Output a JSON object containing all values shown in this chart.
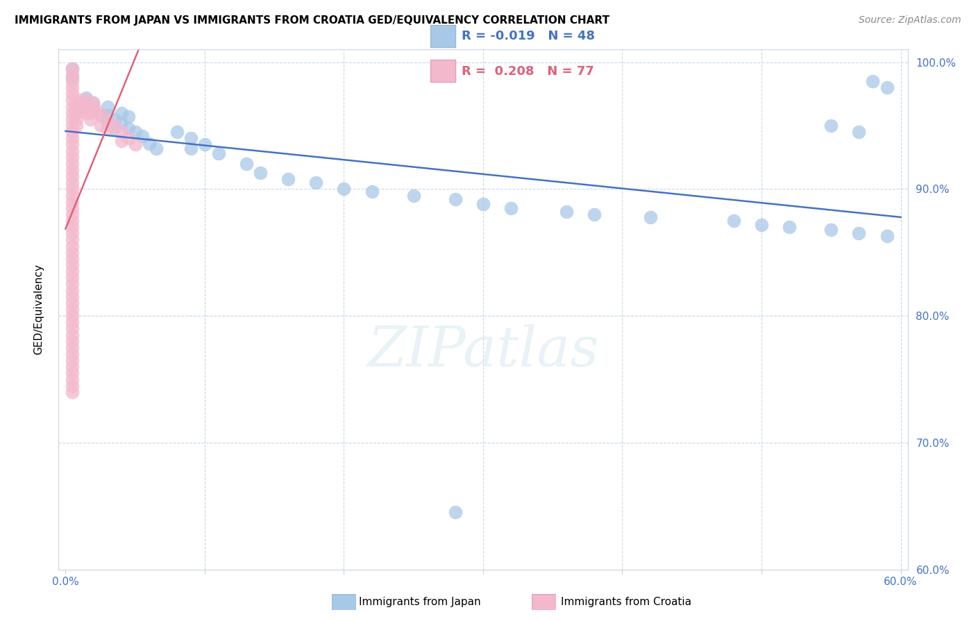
{
  "title": "IMMIGRANTS FROM JAPAN VS IMMIGRANTS FROM CROATIA GED/EQUIVALENCY CORRELATION CHART",
  "source": "Source: ZipAtlas.com",
  "ylabel": "GED/Equivalency",
  "xmin": 0.0,
  "xmax": 0.6,
  "ymin": 0.6,
  "ymax": 1.01,
  "legend_japan_r": "-0.019",
  "legend_japan_n": "48",
  "legend_croatia_r": "0.208",
  "legend_croatia_n": "77",
  "japan_color": "#a8c8e8",
  "croatia_color": "#f4b8cc",
  "japan_line_color": "#4472c4",
  "croatia_line_color": "#e0607a",
  "watermark_text": "ZIPatlas",
  "japan_points": [
    [
      0.005,
      0.995
    ],
    [
      0.005,
      0.988
    ],
    [
      0.015,
      0.972
    ],
    [
      0.02,
      0.968
    ],
    [
      0.02,
      0.962
    ],
    [
      0.025,
      0.958
    ],
    [
      0.03,
      0.965
    ],
    [
      0.03,
      0.958
    ],
    [
      0.03,
      0.952
    ],
    [
      0.035,
      0.955
    ],
    [
      0.035,
      0.948
    ],
    [
      0.04,
      0.96
    ],
    [
      0.04,
      0.952
    ],
    [
      0.045,
      0.957
    ],
    [
      0.045,
      0.948
    ],
    [
      0.05,
      0.945
    ],
    [
      0.055,
      0.942
    ],
    [
      0.06,
      0.936
    ],
    [
      0.065,
      0.932
    ],
    [
      0.08,
      0.945
    ],
    [
      0.09,
      0.94
    ],
    [
      0.09,
      0.932
    ],
    [
      0.1,
      0.935
    ],
    [
      0.11,
      0.928
    ],
    [
      0.13,
      0.92
    ],
    [
      0.14,
      0.913
    ],
    [
      0.16,
      0.908
    ],
    [
      0.18,
      0.905
    ],
    [
      0.2,
      0.9
    ],
    [
      0.22,
      0.898
    ],
    [
      0.25,
      0.895
    ],
    [
      0.28,
      0.892
    ],
    [
      0.3,
      0.888
    ],
    [
      0.32,
      0.885
    ],
    [
      0.36,
      0.882
    ],
    [
      0.38,
      0.88
    ],
    [
      0.42,
      0.878
    ],
    [
      0.48,
      0.875
    ],
    [
      0.5,
      0.872
    ],
    [
      0.52,
      0.87
    ],
    [
      0.55,
      0.868
    ],
    [
      0.57,
      0.865
    ],
    [
      0.59,
      0.863
    ],
    [
      0.55,
      0.95
    ],
    [
      0.57,
      0.945
    ],
    [
      0.58,
      0.985
    ],
    [
      0.59,
      0.98
    ],
    [
      0.28,
      0.645
    ]
  ],
  "croatia_points": [
    [
      0.005,
      0.995
    ],
    [
      0.005,
      0.99
    ],
    [
      0.005,
      0.985
    ],
    [
      0.005,
      0.98
    ],
    [
      0.005,
      0.975
    ],
    [
      0.005,
      0.97
    ],
    [
      0.005,
      0.965
    ],
    [
      0.005,
      0.96
    ],
    [
      0.005,
      0.955
    ],
    [
      0.005,
      0.95
    ],
    [
      0.005,
      0.945
    ],
    [
      0.005,
      0.94
    ],
    [
      0.005,
      0.935
    ],
    [
      0.005,
      0.93
    ],
    [
      0.005,
      0.925
    ],
    [
      0.005,
      0.92
    ],
    [
      0.005,
      0.915
    ],
    [
      0.005,
      0.91
    ],
    [
      0.005,
      0.905
    ],
    [
      0.005,
      0.9
    ],
    [
      0.005,
      0.895
    ],
    [
      0.005,
      0.89
    ],
    [
      0.005,
      0.885
    ],
    [
      0.005,
      0.88
    ],
    [
      0.005,
      0.875
    ],
    [
      0.005,
      0.87
    ],
    [
      0.005,
      0.865
    ],
    [
      0.005,
      0.86
    ],
    [
      0.005,
      0.855
    ],
    [
      0.005,
      0.85
    ],
    [
      0.005,
      0.845
    ],
    [
      0.005,
      0.84
    ],
    [
      0.005,
      0.835
    ],
    [
      0.005,
      0.83
    ],
    [
      0.005,
      0.825
    ],
    [
      0.005,
      0.82
    ],
    [
      0.005,
      0.815
    ],
    [
      0.005,
      0.81
    ],
    [
      0.005,
      0.805
    ],
    [
      0.005,
      0.8
    ],
    [
      0.005,
      0.795
    ],
    [
      0.005,
      0.79
    ],
    [
      0.005,
      0.785
    ],
    [
      0.005,
      0.78
    ],
    [
      0.005,
      0.775
    ],
    [
      0.005,
      0.77
    ],
    [
      0.005,
      0.765
    ],
    [
      0.005,
      0.76
    ],
    [
      0.005,
      0.755
    ],
    [
      0.005,
      0.75
    ],
    [
      0.005,
      0.745
    ],
    [
      0.005,
      0.74
    ],
    [
      0.008,
      0.965
    ],
    [
      0.008,
      0.96
    ],
    [
      0.008,
      0.955
    ],
    [
      0.008,
      0.95
    ],
    [
      0.01,
      0.97
    ],
    [
      0.01,
      0.965
    ],
    [
      0.012,
      0.968
    ],
    [
      0.012,
      0.962
    ],
    [
      0.015,
      0.97
    ],
    [
      0.015,
      0.965
    ],
    [
      0.015,
      0.96
    ],
    [
      0.018,
      0.965
    ],
    [
      0.018,
      0.96
    ],
    [
      0.018,
      0.955
    ],
    [
      0.02,
      0.968
    ],
    [
      0.022,
      0.962
    ],
    [
      0.025,
      0.958
    ],
    [
      0.025,
      0.95
    ],
    [
      0.03,
      0.955
    ],
    [
      0.03,
      0.948
    ],
    [
      0.035,
      0.95
    ],
    [
      0.04,
      0.945
    ],
    [
      0.04,
      0.938
    ],
    [
      0.045,
      0.94
    ],
    [
      0.05,
      0.935
    ]
  ]
}
